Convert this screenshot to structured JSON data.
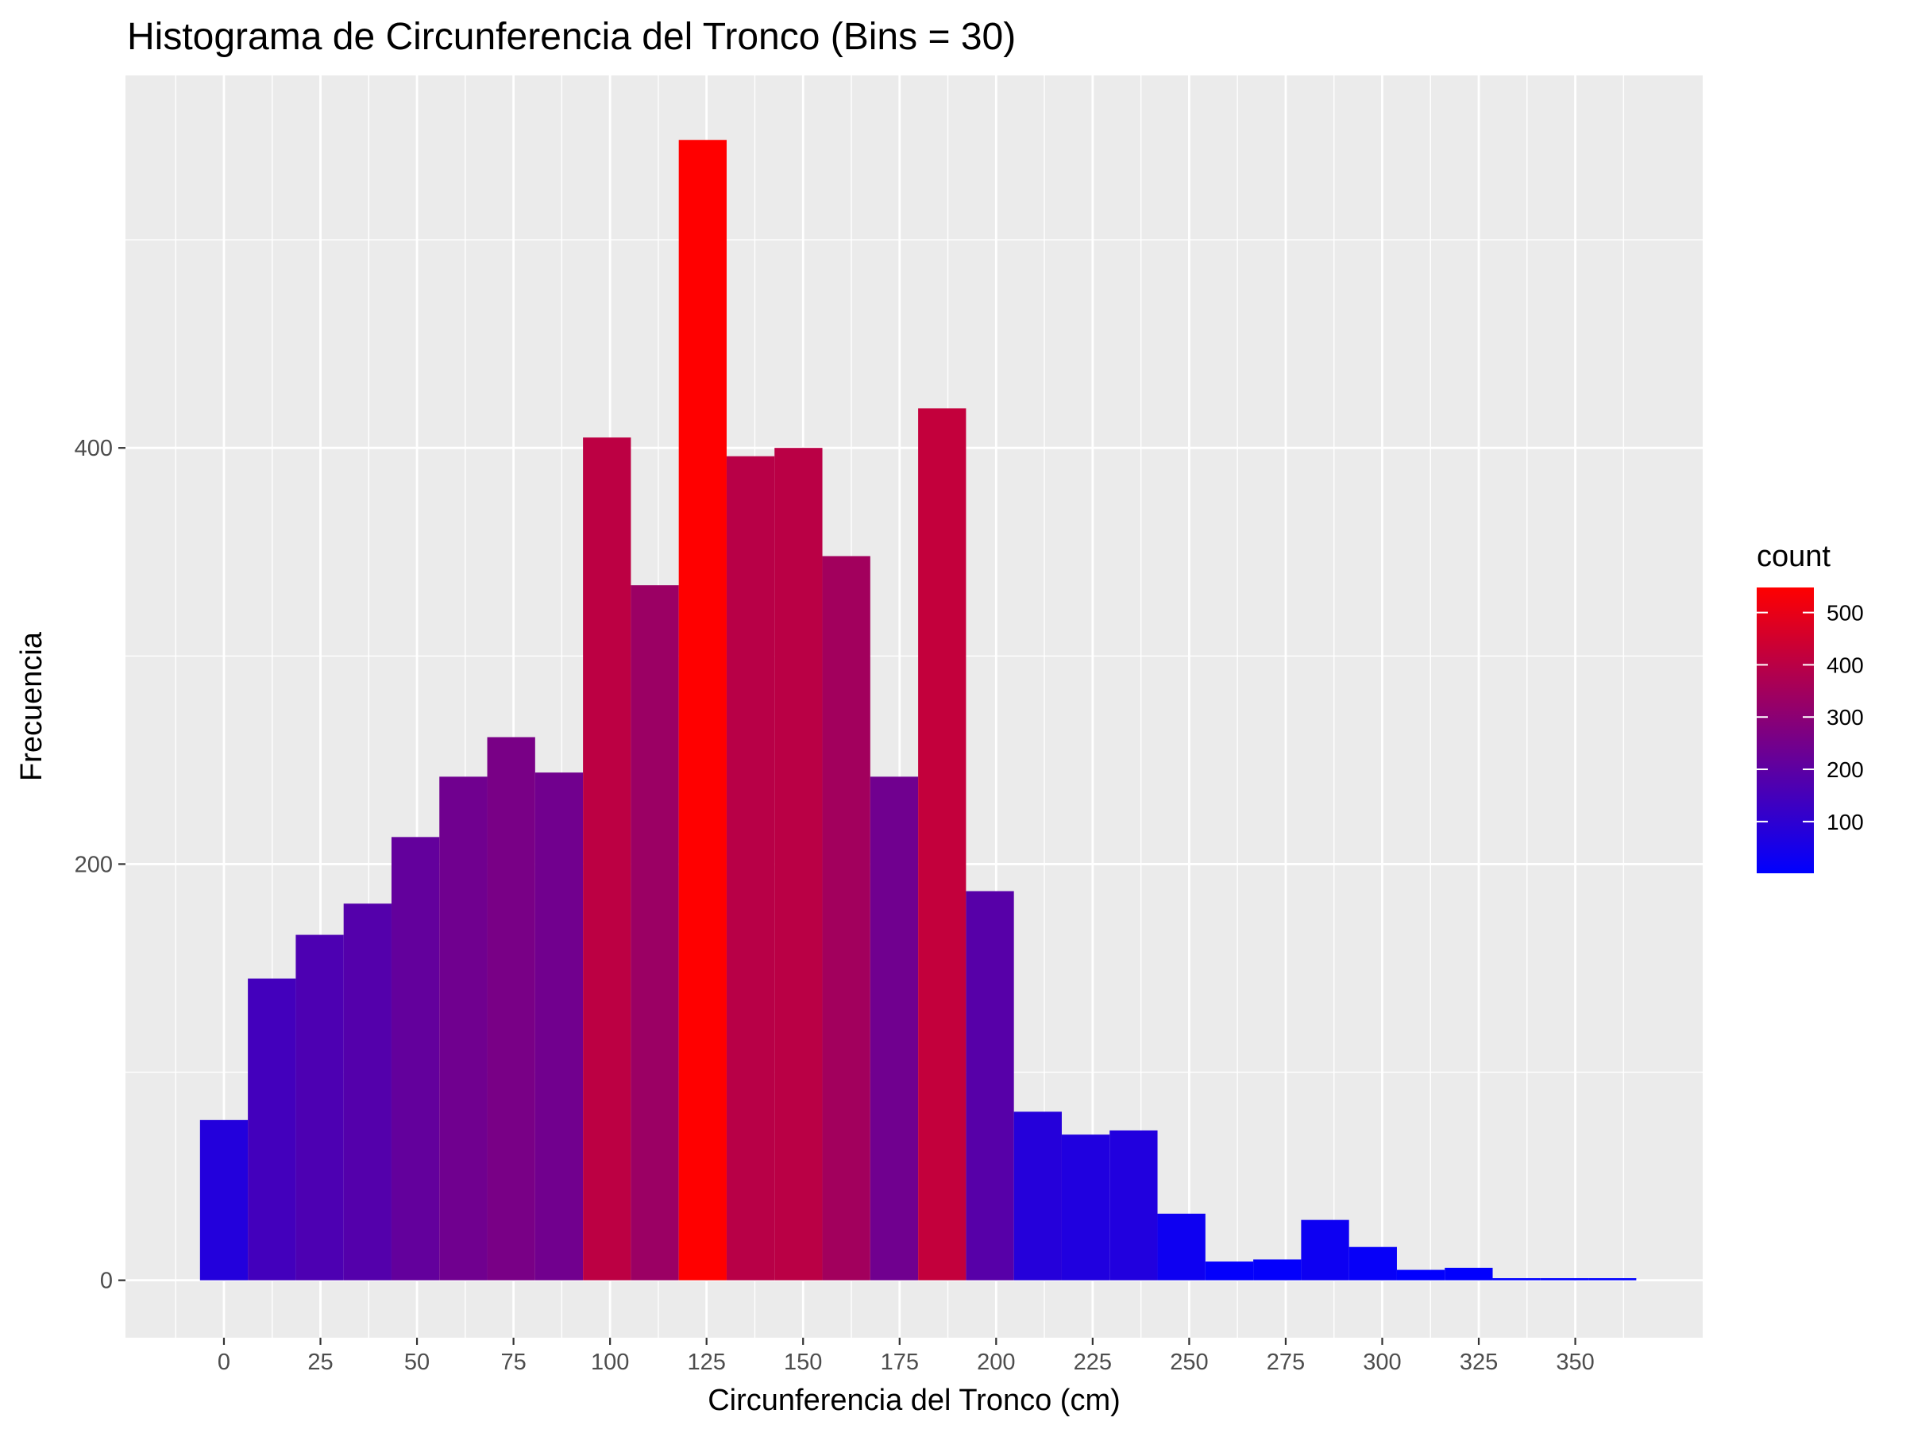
{
  "chart_data": {
    "type": "bar",
    "subtype": "histogram",
    "title": "Histograma de Circunferencia del Tronco (Bins = 30)",
    "xlabel": "Circunferencia del Tronco (cm)",
    "ylabel": "Frecuencia",
    "xlim": [
      -25.5,
      383
    ],
    "ylim": [
      -27.6,
      579
    ],
    "x_ticks": [
      0,
      25,
      50,
      75,
      100,
      125,
      150,
      175,
      200,
      225,
      250,
      275,
      300,
      325,
      350
    ],
    "y_ticks": [
      0,
      200,
      400
    ],
    "bins": {
      "start": -6.2,
      "width": 12.4,
      "counts": [
        77,
        145,
        166,
        181,
        213,
        242,
        261,
        244,
        405,
        334,
        548,
        396,
        400,
        348,
        242,
        419,
        187,
        81,
        70,
        72,
        32,
        9,
        10,
        29,
        16,
        5,
        6,
        1,
        1,
        1
      ]
    },
    "fill_scale": {
      "title": "count",
      "low_color": "#0000ff",
      "high_color": "#ff0000",
      "range": [
        1,
        548
      ],
      "ticks": [
        100,
        200,
        300,
        400,
        500
      ]
    },
    "grid": true,
    "legend_position": "right"
  }
}
